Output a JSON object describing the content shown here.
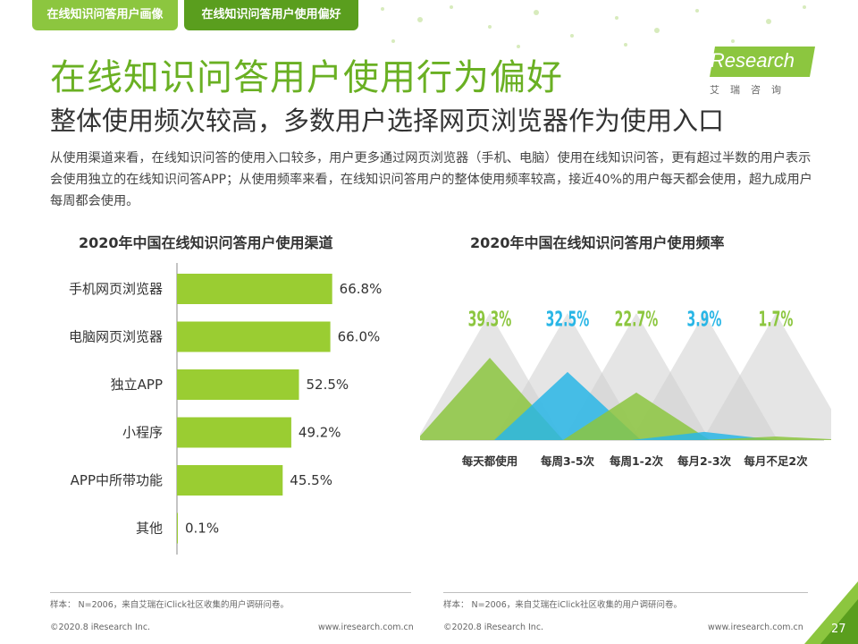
{
  "header": {
    "tabs": [
      {
        "label": "在线知识问答用户画像"
      },
      {
        "label": "在线知识问答用户使用偏好"
      }
    ],
    "title": "在线知识问答用户使用行为偏好",
    "subtitle": "整体使用频次较高，多数用户选择网页浏览器作为使用入口",
    "logo_text": "iResearch",
    "logo_sub": "艾瑞咨询"
  },
  "description": "从使用渠道来看，在线知识问答的使用入口较多，用户更多通过网页浏览器（手机、电脑）使用在线知识问答，更有超过半数的用户表示会使用独立的在线知识问答APP；从使用频率来看，在线知识问答用户的整体使用频率较高，接近40%的用户每天都会使用，超九成用户每周都会使用。",
  "colors": {
    "accent": "#8cc63f",
    "dark_green": "#5a9e1e",
    "title_green": "#6ab023",
    "bar": "#9acd32",
    "cyan": "#29b6e6",
    "gray": "#cfcfcf"
  },
  "chart_data": [
    {
      "type": "bar",
      "title": "2020年中国在线知识问答用户使用渠道",
      "orientation": "horizontal",
      "categories": [
        "手机网页浏览器",
        "电脑网页浏览器",
        "独立APP",
        "小程序",
        "APP中所带功能",
        "其他"
      ],
      "values": [
        66.8,
        66.0,
        52.5,
        49.2,
        45.5,
        0.1
      ],
      "value_labels": [
        "66.8%",
        "66.0%",
        "52.5%",
        "49.2%",
        "45.5%",
        "0.1%"
      ],
      "unit": "%",
      "xlim": [
        0,
        100
      ],
      "grid": false,
      "legend": "none"
    },
    {
      "type": "area",
      "title": "2020年中国在线知识问答用户使用频率",
      "categories": [
        "每天都使用",
        "每周3-5次",
        "每周1-2次",
        "每月2-3次",
        "每月不足2次"
      ],
      "values": [
        39.3,
        32.5,
        22.7,
        3.9,
        1.7
      ],
      "value_labels": [
        "39.3%",
        "32.5%",
        "22.7%",
        "3.9%",
        "1.7%"
      ],
      "label_colors": [
        "#8cc63f",
        "#29b6e6",
        "#8cc63f",
        "#29b6e6",
        "#8cc63f"
      ],
      "unit": "%",
      "grid": false,
      "legend": "none"
    }
  ],
  "footer": {
    "note_left": "样本： N=2006，来自艾瑞在iClick社区收集的用户调研问卷。",
    "note_right": "样本： N=2006，来自艾瑞在iClick社区收集的用户调研问卷。",
    "copyright_left": "©2020.8 iResearch Inc.",
    "url_left": "www.iresearch.com.cn",
    "copyright_right": "©2020.8 iResearch Inc.",
    "url_right": "www.iresearch.com.cn",
    "page_number": "27"
  }
}
